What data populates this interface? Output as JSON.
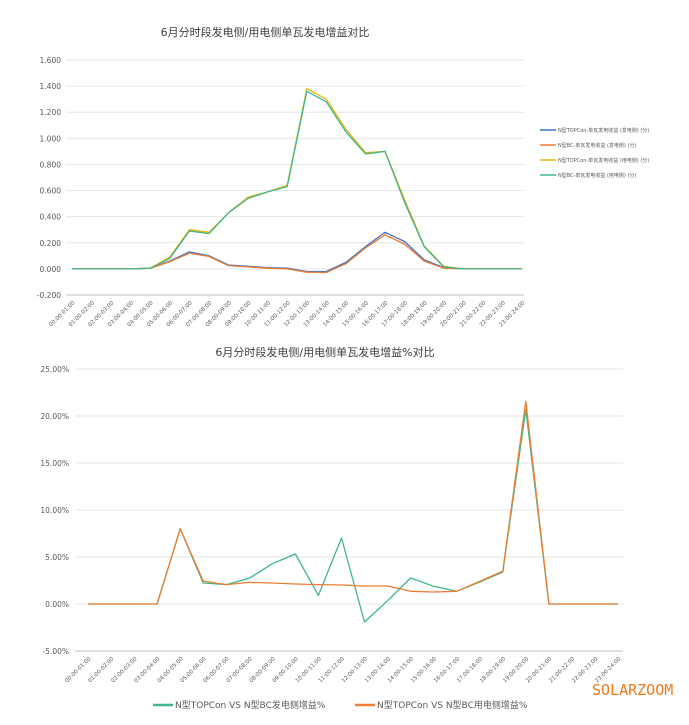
{
  "watermark": "SOLARZOOM",
  "chart_data": [
    {
      "type": "line",
      "title": "6月分时段发电侧/用电侧单瓦发电增益对比",
      "xlabel": "",
      "ylabel": "",
      "ylim": [
        -0.2,
        1.6
      ],
      "yticks": [
        "1.600",
        "1.400",
        "1.200",
        "1.000",
        "0.800",
        "0.600",
        "0.400",
        "0.200",
        "0.000",
        "-0.200"
      ],
      "ytick_values": [
        1.6,
        1.4,
        1.2,
        1.0,
        0.8,
        0.6,
        0.4,
        0.2,
        0.0,
        -0.2
      ],
      "grid": true,
      "legend_position": "right",
      "categories": [
        "00:00-01:00",
        "01:00-02:00",
        "02:00-03:00",
        "03:00-04:00",
        "04:00-05:00",
        "05:00-06:00",
        "06:00-07:00",
        "07:00-08:00",
        "08:00-09:00",
        "09:00-10:00",
        "10:00-11:00",
        "11:00-12:00",
        "12:00-13:00",
        "13:00-14:00",
        "14:00-15:00",
        "15:00-16:00",
        "16:00-17:00",
        "17:00-18:00",
        "18:00-19:00",
        "19:00-20:00",
        "20:00-21:00",
        "21:00-22:00",
        "22:00-23:00",
        "23:00-24:00"
      ],
      "series": [
        {
          "name": "N型TOPCon-单瓦发电收益 (发电侧) (分)",
          "color": "#4472c4",
          "values": [
            0,
            0,
            0,
            0,
            0.005,
            0.06,
            0.13,
            0.1,
            0.03,
            0.02,
            0.01,
            0.005,
            -0.02,
            -0.02,
            0.05,
            0.17,
            0.28,
            0.21,
            0.07,
            0.01,
            0,
            0,
            0,
            0
          ]
        },
        {
          "name": "N型BC-单瓦发电收益 (发电侧) (分)",
          "color": "#ed7d31",
          "values": [
            0,
            0,
            0,
            0,
            0.005,
            0.055,
            0.12,
            0.095,
            0.025,
            0.015,
            0.005,
            0,
            -0.025,
            -0.028,
            0.04,
            0.16,
            0.26,
            0.19,
            0.06,
            0.005,
            0,
            0,
            0,
            0
          ]
        },
        {
          "name": "N型TOPCon-单瓦发电收益 (用电侧) (分)",
          "color": "#e5b50d",
          "values": [
            0,
            0,
            0,
            0,
            0.005,
            0.09,
            0.3,
            0.28,
            0.43,
            0.55,
            0.59,
            0.64,
            1.38,
            1.3,
            1.07,
            0.89,
            0.9,
            0.53,
            0.175,
            0.02,
            0,
            0,
            0,
            0
          ]
        },
        {
          "name": "N型BC-单瓦发电收益 (用电侧) (分)",
          "color": "#3fb68b",
          "values": [
            0,
            0,
            0,
            0,
            0.005,
            0.08,
            0.29,
            0.27,
            0.43,
            0.54,
            0.59,
            0.63,
            1.36,
            1.28,
            1.05,
            0.88,
            0.9,
            0.51,
            0.17,
            0.015,
            0,
            0,
            0,
            0
          ]
        }
      ]
    },
    {
      "type": "line",
      "title": "6月分时段发电侧/用电侧单瓦发电增益%对比",
      "xlabel": "",
      "ylabel": "",
      "ylim": [
        -5,
        25
      ],
      "yticks": [
        "25.00%",
        "20.00%",
        "15.00%",
        "10.00%",
        "5.00%",
        "0.00%",
        "-5.00%"
      ],
      "ytick_values": [
        25,
        20,
        15,
        10,
        5,
        0,
        -5
      ],
      "grid": true,
      "legend_position": "bottom",
      "categories": [
        "00:00-01:00",
        "01:00-02:00",
        "02:00-03:00",
        "03:00-04:00",
        "04:00-05:00",
        "05:00-06:00",
        "06:00-07:00",
        "07:00-08:00",
        "08:00-09:00",
        "09:00-10:00",
        "10:00-11:00",
        "11:00-12:00",
        "12:00-13:00",
        "13:00-14:00",
        "14:00-15:00",
        "15:00-16:00",
        "16:00-17:00",
        "17:00-18:00",
        "18:00-19:00",
        "19:00-20:00",
        "20:00-21:00",
        "21:00-22:00",
        "22:00-23:00",
        "23:00-24:00"
      ],
      "series": [
        {
          "name": "N型TOPCon VS N型BC发电侧增益%",
          "color": "#3fb68b",
          "values": [
            0,
            0,
            0,
            0,
            8.0,
            2.23,
            2.06,
            2.73,
            4.29,
            5.32,
            0.92,
            7.02,
            -1.91,
            0.35,
            2.77,
            1.88,
            1.35,
            2.34,
            3.4,
            20.7,
            0,
            0,
            0,
            0
          ]
        },
        {
          "name": "N型TOPCon VS N型BC用电侧增益%",
          "color": "#ed7d31",
          "values": [
            0,
            0,
            0,
            0,
            8.0,
            2.45,
            2.06,
            2.3,
            2.23,
            2.13,
            2.06,
            2.02,
            1.91,
            1.91,
            1.35,
            1.28,
            1.35,
            2.4,
            3.5,
            21.56,
            0,
            0,
            0,
            0
          ]
        }
      ]
    }
  ]
}
